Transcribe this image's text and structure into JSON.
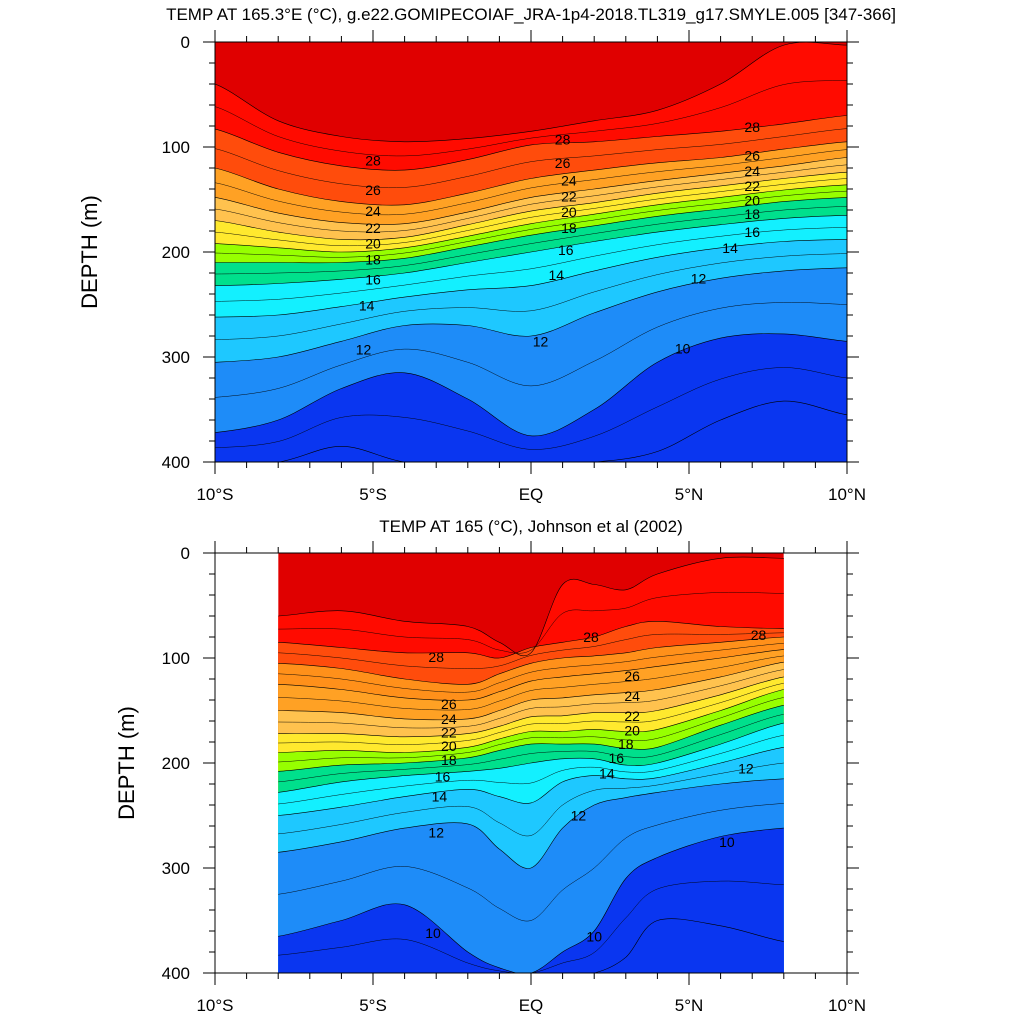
{
  "chart_data": [
    {
      "type": "contour",
      "title": "TEMP AT 165.3°E (°C), g.e22.GOMIPECOIAF_JRA-1p4-2018.TL319_g17.SMYLE.005 [347-366]",
      "ylabel": "DEPTH (m)",
      "xlabel": "",
      "xlim": [
        -10,
        10
      ],
      "ylim": [
        400,
        0
      ],
      "x_ticks": [
        -10,
        -5,
        0,
        5,
        10
      ],
      "x_tick_labels": [
        "10°S",
        "5°S",
        "EQ",
        "5°N",
        "10°N"
      ],
      "y_ticks": [
        0,
        100,
        200,
        300,
        400
      ],
      "y_tick_labels": [
        "0",
        "100",
        "200",
        "300",
        "400"
      ],
      "contour_interval": 1,
      "x": [
        -10,
        -8,
        -6,
        -4,
        -2,
        0,
        2,
        4,
        6,
        8,
        10
      ],
      "isotherms": [
        {
          "temp": 29,
          "depth": [
            40,
            75,
            90,
            95,
            92,
            85,
            75,
            65,
            40,
            3,
            3
          ]
        },
        {
          "temp": 28,
          "depth": [
            83,
            105,
            118,
            122,
            112,
            98,
            95,
            90,
            85,
            78,
            70
          ]
        },
        {
          "temp": 26,
          "depth": [
            120,
            140,
            152,
            155,
            144,
            130,
            122,
            115,
            110,
            102,
            95
          ]
        },
        {
          "temp": 24,
          "depth": [
            148,
            163,
            172,
            173,
            162,
            148,
            140,
            132,
            125,
            118,
            110
          ]
        },
        {
          "temp": 22,
          "depth": [
            170,
            181,
            188,
            186,
            174,
            161,
            153,
            144,
            137,
            130,
            124
          ]
        },
        {
          "temp": 20,
          "depth": [
            192,
            196,
            200,
            196,
            185,
            173,
            164,
            155,
            148,
            141,
            136
          ]
        },
        {
          "temp": 18,
          "depth": [
            210,
            210,
            210,
            206,
            195,
            184,
            175,
            166,
            159,
            152,
            148
          ]
        },
        {
          "temp": 16,
          "depth": [
            232,
            230,
            226,
            220,
            210,
            200,
            190,
            181,
            174,
            168,
            165
          ]
        },
        {
          "temp": 14,
          "depth": [
            262,
            260,
            252,
            243,
            236,
            232,
            218,
            205,
            196,
            190,
            188
          ]
        },
        {
          "temp": 12,
          "depth": [
            305,
            300,
            285,
            270,
            270,
            280,
            258,
            238,
            225,
            218,
            215
          ]
        },
        {
          "temp": 10,
          "depth": [
            372,
            360,
            330,
            315,
            340,
            375,
            350,
            305,
            282,
            278,
            285
          ]
        },
        {
          "temp": 9,
          "depth": [
            401,
            401,
            385,
            400,
            401,
            401,
            401,
            390,
            360,
            342,
            355
          ]
        }
      ],
      "contour_labels": [
        {
          "x": -5,
          "y": 113,
          "text": "28"
        },
        {
          "x": -5,
          "y": 141,
          "text": "26"
        },
        {
          "x": -5,
          "y": 161,
          "text": "24"
        },
        {
          "x": -5,
          "y": 177,
          "text": "22"
        },
        {
          "x": -5,
          "y": 192,
          "text": "20"
        },
        {
          "x": -5,
          "y": 207,
          "text": "18"
        },
        {
          "x": -5,
          "y": 226,
          "text": "16"
        },
        {
          "x": -5.2,
          "y": 251,
          "text": "14"
        },
        {
          "x": -5.3,
          "y": 293,
          "text": "12"
        },
        {
          "x": 1,
          "y": 93,
          "text": "28"
        },
        {
          "x": 1,
          "y": 115,
          "text": "26"
        },
        {
          "x": 1.2,
          "y": 132,
          "text": "24"
        },
        {
          "x": 1.2,
          "y": 147,
          "text": "22"
        },
        {
          "x": 1.2,
          "y": 162,
          "text": "20"
        },
        {
          "x": 1.2,
          "y": 177,
          "text": "18"
        },
        {
          "x": 1.1,
          "y": 198,
          "text": "16"
        },
        {
          "x": 0.8,
          "y": 222,
          "text": "14"
        },
        {
          "x": 0.3,
          "y": 285,
          "text": "12"
        },
        {
          "x": 7,
          "y": 81,
          "text": "28"
        },
        {
          "x": 7,
          "y": 108,
          "text": "26"
        },
        {
          "x": 7,
          "y": 123,
          "text": "24"
        },
        {
          "x": 7,
          "y": 137,
          "text": "22"
        },
        {
          "x": 7,
          "y": 151,
          "text": "20"
        },
        {
          "x": 7,
          "y": 164,
          "text": "18"
        },
        {
          "x": 7,
          "y": 181,
          "text": "16"
        },
        {
          "x": 6.3,
          "y": 196,
          "text": "14"
        },
        {
          "x": 5.3,
          "y": 225,
          "text": "12"
        },
        {
          "x": 4.8,
          "y": 292,
          "text": "10"
        }
      ]
    },
    {
      "type": "contour",
      "title": "TEMP AT 165 (°C), Johnson et al (2002)",
      "ylabel": "DEPTH (m)",
      "xlabel": "",
      "xlim": [
        -10,
        10
      ],
      "ylim": [
        400,
        0
      ],
      "data_xlim": [
        -8,
        8
      ],
      "x_ticks": [
        -10,
        -5,
        0,
        5,
        10
      ],
      "x_tick_labels": [
        "10°S",
        "5°S",
        "EQ",
        "5°N",
        "10°N"
      ],
      "y_ticks": [
        0,
        100,
        200,
        300,
        400
      ],
      "y_tick_labels": [
        "0",
        "100",
        "200",
        "300",
        "400"
      ],
      "contour_interval": 1,
      "x": [
        -8,
        -6,
        -4,
        -2,
        -1,
        0,
        1,
        2,
        3,
        4,
        6,
        8
      ],
      "isotherms": [
        {
          "temp": 29,
          "depth": [
            60,
            55,
            65,
            70,
            85,
            95,
            30,
            30,
            35,
            20,
            5,
            5
          ]
        },
        {
          "temp": 28,
          "depth": [
            85,
            90,
            95,
            95,
            100,
            90,
            85,
            80,
            70,
            65,
            70,
            72
          ]
        },
        {
          "temp": 27,
          "depth": [
            105,
            110,
            120,
            125,
            115,
            105,
            100,
            98,
            95,
            90,
            85,
            80
          ]
        },
        {
          "temp": 26,
          "depth": [
            125,
            130,
            138,
            140,
            132,
            122,
            118,
            115,
            112,
            108,
            100,
            92
          ]
        },
        {
          "temp": 24,
          "depth": [
            150,
            152,
            158,
            158,
            150,
            140,
            138,
            135,
            133,
            130,
            118,
            104
          ]
        },
        {
          "temp": 22,
          "depth": [
            172,
            172,
            175,
            172,
            165,
            156,
            155,
            152,
            152,
            150,
            135,
            118
          ]
        },
        {
          "temp": 20,
          "depth": [
            190,
            188,
            190,
            185,
            177,
            170,
            170,
            168,
            170,
            168,
            150,
            130
          ]
        },
        {
          "temp": 18,
          "depth": [
            208,
            202,
            200,
            195,
            188,
            182,
            182,
            182,
            186,
            185,
            164,
            145
          ]
        },
        {
          "temp": 16,
          "depth": [
            228,
            218,
            212,
            208,
            205,
            200,
            196,
            196,
            202,
            200,
            182,
            162
          ]
        },
        {
          "temp": 14,
          "depth": [
            250,
            242,
            232,
            225,
            232,
            238,
            218,
            212,
            215,
            214,
            200,
            185
          ]
        },
        {
          "temp": 12,
          "depth": [
            285,
            275,
            262,
            258,
            282,
            300,
            262,
            240,
            233,
            228,
            220,
            215
          ]
        },
        {
          "temp": 10,
          "depth": [
            365,
            350,
            335,
            380,
            395,
            400,
            380,
            360,
            310,
            290,
            270,
            262
          ]
        },
        {
          "temp": 9,
          "depth": [
            401,
            401,
            401,
            401,
            401,
            401,
            401,
            401,
            385,
            350,
            355,
            370
          ]
        }
      ],
      "contour_labels": [
        {
          "x": -3,
          "y": 99,
          "text": "28"
        },
        {
          "x": -2.6,
          "y": 144,
          "text": "26"
        },
        {
          "x": -2.6,
          "y": 158,
          "text": "24"
        },
        {
          "x": -2.6,
          "y": 171,
          "text": "22"
        },
        {
          "x": -2.6,
          "y": 184,
          "text": "20"
        },
        {
          "x": -2.6,
          "y": 197,
          "text": "18"
        },
        {
          "x": -2.8,
          "y": 213,
          "text": "16"
        },
        {
          "x": -2.9,
          "y": 232,
          "text": "14"
        },
        {
          "x": -3.0,
          "y": 266,
          "text": "12"
        },
        {
          "x": -3.1,
          "y": 362,
          "text": "10"
        },
        {
          "x": 1.9,
          "y": 80,
          "text": "28"
        },
        {
          "x": 3.2,
          "y": 117,
          "text": "26"
        },
        {
          "x": 3.2,
          "y": 136,
          "text": "24"
        },
        {
          "x": 3.2,
          "y": 155,
          "text": "22"
        },
        {
          "x": 3.2,
          "y": 169,
          "text": "20"
        },
        {
          "x": 3.0,
          "y": 182,
          "text": "18"
        },
        {
          "x": 2.7,
          "y": 195,
          "text": "16"
        },
        {
          "x": 2.4,
          "y": 210,
          "text": "14"
        },
        {
          "x": 1.5,
          "y": 250,
          "text": "12"
        },
        {
          "x": 2.0,
          "y": 365,
          "text": "10"
        },
        {
          "x": 6.8,
          "y": 205,
          "text": "12"
        },
        {
          "x": 6.2,
          "y": 275,
          "text": "10"
        },
        {
          "x": 7.2,
          "y": 78,
          "text": "28"
        }
      ]
    }
  ],
  "colors": {
    "background": "#ffffff",
    "missing": "#ffffff",
    "temperature_scale": [
      {
        "temp": 9,
        "hex": "#0a36f0"
      },
      {
        "temp": 10,
        "hex": "#1565f5"
      },
      {
        "temp": 11,
        "hex": "#1e8cf8"
      },
      {
        "temp": 12,
        "hex": "#16a6fb"
      },
      {
        "temp": 13,
        "hex": "#1ec8ff"
      },
      {
        "temp": 14,
        "hex": "#33ddff"
      },
      {
        "temp": 15,
        "hex": "#13f0ff"
      },
      {
        "temp": 16,
        "hex": "#00eedd"
      },
      {
        "temp": 17,
        "hex": "#00e08c"
      },
      {
        "temp": 18,
        "hex": "#20e61a"
      },
      {
        "temp": 19,
        "hex": "#97ff00"
      },
      {
        "temp": 20,
        "hex": "#ffff00"
      },
      {
        "temp": 21,
        "hex": "#ffe92e"
      },
      {
        "temp": 22,
        "hex": "#ffd54b"
      },
      {
        "temp": 23,
        "hex": "#ffc24e"
      },
      {
        "temp": 24,
        "hex": "#ffb13a"
      },
      {
        "temp": 25,
        "hex": "#ffa124"
      },
      {
        "temp": 26,
        "hex": "#ff901a"
      },
      {
        "temp": 27,
        "hex": "#ff4c0c"
      },
      {
        "temp": 28,
        "hex": "#ff0b00"
      },
      {
        "temp": 29,
        "hex": "#e00000"
      }
    ]
  }
}
